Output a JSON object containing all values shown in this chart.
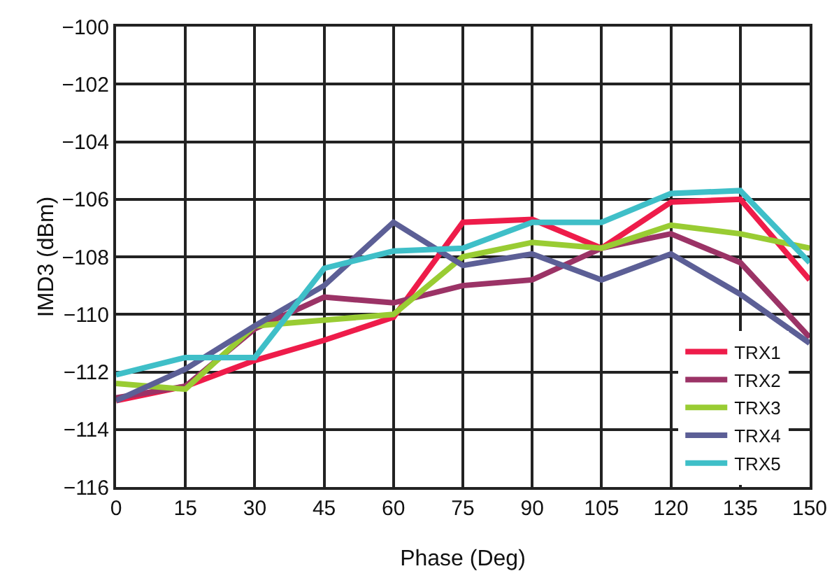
{
  "chart_data": {
    "type": "line",
    "xlabel": "Phase (Deg)",
    "ylabel": "IMD3 (dBm)",
    "x": [
      0,
      15,
      30,
      45,
      60,
      75,
      90,
      105,
      120,
      135,
      150
    ],
    "series": [
      {
        "name": "TRX1",
        "color": "#ee1c4a",
        "values": [
          -113.0,
          -112.5,
          -111.6,
          -110.9,
          -110.1,
          -106.8,
          -106.7,
          -107.7,
          -106.1,
          -106.0,
          -108.8
        ]
      },
      {
        "name": "TRX2",
        "color": "#9b3366",
        "values": [
          -112.9,
          -112.5,
          -110.5,
          -109.4,
          -109.6,
          -109.0,
          -108.8,
          -107.7,
          -107.2,
          -108.2,
          -110.8
        ]
      },
      {
        "name": "TRX3",
        "color": "#99cc33",
        "values": [
          -112.4,
          -112.6,
          -110.4,
          -110.2,
          -110.0,
          -108.0,
          -107.5,
          -107.7,
          -106.9,
          -107.2,
          -107.7
        ]
      },
      {
        "name": "TRX4",
        "color": "#5c5f96",
        "values": [
          -113.0,
          -111.9,
          -110.4,
          -109.0,
          -106.8,
          -108.3,
          -107.9,
          -108.8,
          -107.9,
          -109.3,
          -111.0
        ]
      },
      {
        "name": "TRX5",
        "color": "#3fbfc8",
        "values": [
          -112.1,
          -111.5,
          -111.5,
          -108.4,
          -107.8,
          -107.7,
          -106.8,
          -106.8,
          -105.8,
          -105.7,
          -108.2
        ]
      }
    ],
    "xlim": [
      0,
      150
    ],
    "xticks": [
      0,
      15,
      30,
      45,
      60,
      75,
      90,
      105,
      120,
      135,
      150
    ],
    "ylim": [
      -116,
      -100
    ],
    "yticks": [
      {
        "value": -116,
        "label": "−116"
      },
      {
        "value": -114,
        "label": "−114"
      },
      {
        "value": -112,
        "label": "−112"
      },
      {
        "value": -110,
        "label": "−110"
      },
      {
        "value": -108,
        "label": "−108"
      },
      {
        "value": -106,
        "label": "−106"
      },
      {
        "value": -104,
        "label": "−104"
      },
      {
        "value": -102,
        "label": "−102"
      },
      {
        "value": -100,
        "label": "−100"
      }
    ],
    "grid": true,
    "legend": "bottom right",
    "marker": "none",
    "line_style": "solid"
  }
}
